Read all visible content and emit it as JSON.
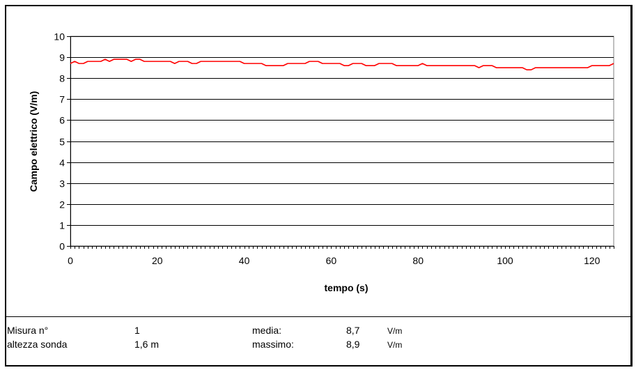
{
  "chart_data": {
    "type": "line",
    "xlabel": "tempo (s)",
    "ylabel": "Campo elettrico (V/m)",
    "xlim": [
      0,
      125
    ],
    "ylim": [
      0,
      10
    ],
    "x_ticks": [
      0,
      20,
      40,
      60,
      80,
      100,
      120
    ],
    "y_ticks": [
      0,
      1,
      2,
      3,
      4,
      5,
      6,
      7,
      8,
      9,
      10
    ],
    "grid": "horizontal",
    "legend": "none",
    "line_color": "#ff0000",
    "series": [
      {
        "x": [
          0,
          1,
          2,
          3,
          4,
          5,
          6,
          7,
          8,
          9,
          10,
          11,
          12,
          13,
          14,
          15,
          16,
          17,
          18,
          19,
          20,
          21,
          22,
          23,
          24,
          25,
          26,
          27,
          28,
          29,
          30,
          31,
          32,
          33,
          34,
          35,
          36,
          37,
          38,
          39,
          40,
          41,
          42,
          43,
          44,
          45,
          46,
          47,
          48,
          49,
          50,
          51,
          52,
          53,
          54,
          55,
          56,
          57,
          58,
          59,
          60,
          61,
          62,
          63,
          64,
          65,
          66,
          67,
          68,
          69,
          70,
          71,
          72,
          73,
          74,
          75,
          76,
          77,
          78,
          79,
          80,
          81,
          82,
          83,
          84,
          85,
          86,
          87,
          88,
          89,
          90,
          91,
          92,
          93,
          94,
          95,
          96,
          97,
          98,
          99,
          100,
          101,
          102,
          103,
          104,
          105,
          106,
          107,
          108,
          109,
          110,
          111,
          112,
          113,
          114,
          115,
          116,
          117,
          118,
          119,
          120,
          121,
          122,
          123,
          124,
          125
        ],
        "y": [
          8.7,
          8.8,
          8.7,
          8.7,
          8.8,
          8.8,
          8.8,
          8.8,
          8.9,
          8.8,
          8.9,
          8.9,
          8.9,
          8.9,
          8.8,
          8.9,
          8.9,
          8.8,
          8.8,
          8.8,
          8.8,
          8.8,
          8.8,
          8.8,
          8.7,
          8.8,
          8.8,
          8.8,
          8.7,
          8.7,
          8.8,
          8.8,
          8.8,
          8.8,
          8.8,
          8.8,
          8.8,
          8.8,
          8.8,
          8.8,
          8.7,
          8.7,
          8.7,
          8.7,
          8.7,
          8.6,
          8.6,
          8.6,
          8.6,
          8.6,
          8.7,
          8.7,
          8.7,
          8.7,
          8.7,
          8.8,
          8.8,
          8.8,
          8.7,
          8.7,
          8.7,
          8.7,
          8.7,
          8.6,
          8.6,
          8.7,
          8.7,
          8.7,
          8.6,
          8.6,
          8.6,
          8.7,
          8.7,
          8.7,
          8.7,
          8.6,
          8.6,
          8.6,
          8.6,
          8.6,
          8.6,
          8.7,
          8.6,
          8.6,
          8.6,
          8.6,
          8.6,
          8.6,
          8.6,
          8.6,
          8.6,
          8.6,
          8.6,
          8.6,
          8.5,
          8.6,
          8.6,
          8.6,
          8.5,
          8.5,
          8.5,
          8.5,
          8.5,
          8.5,
          8.5,
          8.4,
          8.4,
          8.5,
          8.5,
          8.5,
          8.5,
          8.5,
          8.5,
          8.5,
          8.5,
          8.5,
          8.5,
          8.5,
          8.5,
          8.5,
          8.6,
          8.6,
          8.6,
          8.6,
          8.6,
          8.7
        ]
      }
    ]
  },
  "info": {
    "misura_label": "Misura n°",
    "misura_value": "1",
    "altezza_label": "altezza sonda",
    "altezza_value": "1,6 m",
    "media_label": "media:",
    "media_value": "8,7",
    "media_unit": "V/m",
    "massimo_label": "massimo:",
    "massimo_value": "8,9",
    "massimo_unit": "V/m"
  }
}
